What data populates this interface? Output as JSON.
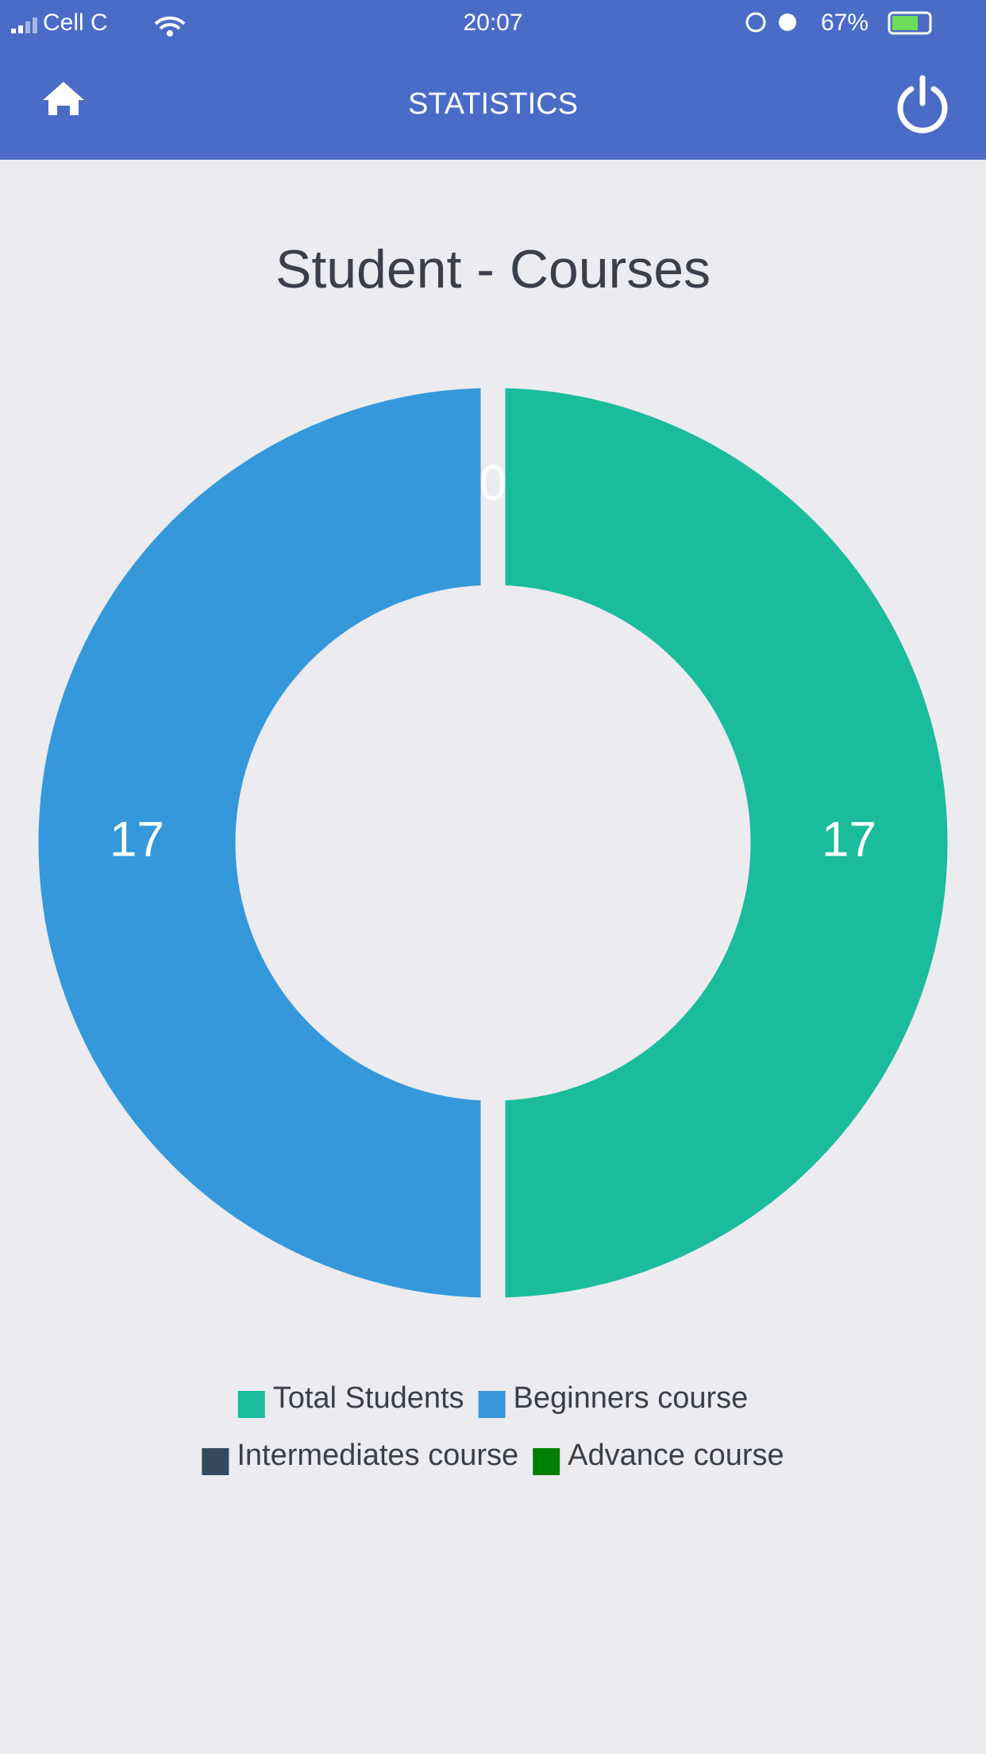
{
  "status_bar": {
    "carrier": "Cell C",
    "time": "20:07",
    "battery": "67%"
  },
  "header": {
    "title": "STATISTICS"
  },
  "chart_data": {
    "type": "doughnut",
    "title": "Student - Courses",
    "categories": [
      "Total Students",
      "Beginners course",
      "Intermediates course",
      "Advance course"
    ],
    "values": [
      17,
      17,
      0,
      0
    ],
    "colors": [
      "#1abc9c",
      "#3498db",
      "#34495e",
      "#008000"
    ]
  }
}
